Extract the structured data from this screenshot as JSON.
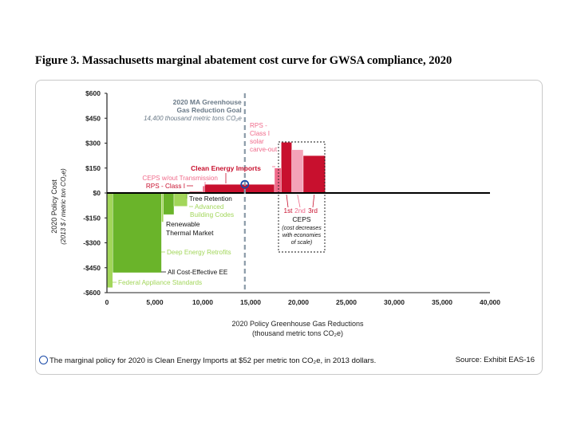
{
  "title": "Figure 3. Massachusetts marginal abatement cost curve for GWSA compliance, 2020",
  "footnote": "The marginal policy for 2020 is Clean Energy Imports at $52 per metric ton CO₂e, in 2013 dollars.",
  "footnote_icon": "marginal-policy-circle-icon",
  "source": "Source: Exhibit EAS-16",
  "colors": {
    "efficiency_dark": "#6ab42a",
    "efficiency_light": "#a2d65a",
    "renewable_red": "#c8102e",
    "rps_pink": "#f06a8a",
    "ceps_light_pink": "#f4a3b8",
    "goal_line": "#8a9aa8",
    "marker": "#1a4aa8"
  },
  "chart_data": {
    "type": "bar",
    "subtype": "marginal abatement cost curve (variable-width bars)",
    "xlabel": [
      "2020 Policy Greenhouse Gas Reductions",
      "(thousand metric tons CO₂e)"
    ],
    "ylabel": [
      "2020 Policy Cost",
      "(2013 $ / metric ton CO₂e)"
    ],
    "xlim": [
      0,
      40000
    ],
    "ylim": [
      -600,
      600
    ],
    "x_ticks": [
      0,
      5000,
      10000,
      15000,
      20000,
      25000,
      30000,
      35000,
      40000
    ],
    "x_tick_labels": [
      "0",
      "5,000",
      "10,000",
      "15,000",
      "20,000",
      "25,000",
      "30,000",
      "35,000",
      "40,000"
    ],
    "y_ticks": [
      600,
      450,
      300,
      150,
      0,
      -150,
      -300,
      -450,
      -600
    ],
    "y_tick_labels": [
      "$600",
      "$450",
      "$300",
      "$150",
      "$0",
      "-$150",
      "-$300",
      "-$450",
      "-$600"
    ],
    "grid": false,
    "bars": [
      {
        "label": "Federal Appliance Standards",
        "x_start": 0,
        "x_end": 600,
        "cost": -570,
        "color": "#a2d65a"
      },
      {
        "label": "All Cost-Effective EE",
        "x_start": 600,
        "x_end": 5700,
        "cost": -480,
        "color": "#6ab42a"
      },
      {
        "label": "Deep Energy Retrofits",
        "x_start": 5700,
        "x_end": 5900,
        "cost": -175,
        "color": "#a2d65a"
      },
      {
        "label": "Renewable Thermal Market",
        "x_start": 5900,
        "x_end": 7000,
        "cost": -130,
        "color": "#6ab42a"
      },
      {
        "label": "Advanced Building Codes",
        "x_start": 7000,
        "x_end": 8400,
        "cost": -80,
        "color": "#a2d65a"
      },
      {
        "label": "Tree Retention",
        "x_start": 8400,
        "x_end": 8600,
        "cost": -8,
        "color": "#6ab42a"
      },
      {
        "label": "RPS - Class I",
        "x_start": 8600,
        "x_end": 10000,
        "cost": 8,
        "color": "#c8102e"
      },
      {
        "label": "CEPS w/out Transmission",
        "x_start": 10000,
        "x_end": 10200,
        "cost": 42,
        "color": "#f06a8a"
      },
      {
        "label": "Clean Energy Imports",
        "x_start": 10200,
        "x_end": 17500,
        "cost": 52,
        "color": "#c8102e"
      },
      {
        "label": "RPS - Class I solar carve-out",
        "x_start": 17500,
        "x_end": 18200,
        "cost": 150,
        "color": "#f06a8a"
      },
      {
        "label": "1st",
        "x_start": 18200,
        "x_end": 19300,
        "cost": 305,
        "color": "#c8102e"
      },
      {
        "label": "2nd",
        "x_start": 19300,
        "x_end": 20500,
        "cost": 260,
        "color": "#f4a3b8"
      },
      {
        "label": "3rd",
        "x_start": 20500,
        "x_end": 22800,
        "cost": 225,
        "color": "#c8102e"
      }
    ],
    "goal": {
      "x": 14400,
      "label": [
        "2020 MA Greenhouse",
        "Gas Reduction Goal"
      ],
      "value_label": "14,400 thousand metric tons CO₂e"
    },
    "marginal_marker": {
      "x": 14400,
      "cost": 52
    },
    "ceps_group": {
      "labels": [
        "1st",
        "2nd",
        "3rd"
      ],
      "title": "CEPS",
      "note": [
        "(cost decreases",
        "with economies",
        "of scale)"
      ]
    },
    "annotations": {
      "ceps_wout": "CEPS w/out Transmission",
      "rps_class1": "RPS - Class I",
      "clean_imports": "Clean Energy Imports",
      "tree": "Tree Retention",
      "adv_codes": [
        "Advanced",
        "Building Codes"
      ],
      "renewable_thermal": [
        "Renewable",
        "Thermal Market"
      ],
      "deep_retro": "Deep Energy Retrofits",
      "all_ee": "All Cost-Effective EE",
      "fed_app": "Federal Appliance Standards",
      "rps_solar": [
        "RPS -",
        "Class I",
        "solar",
        "carve-out"
      ]
    }
  }
}
